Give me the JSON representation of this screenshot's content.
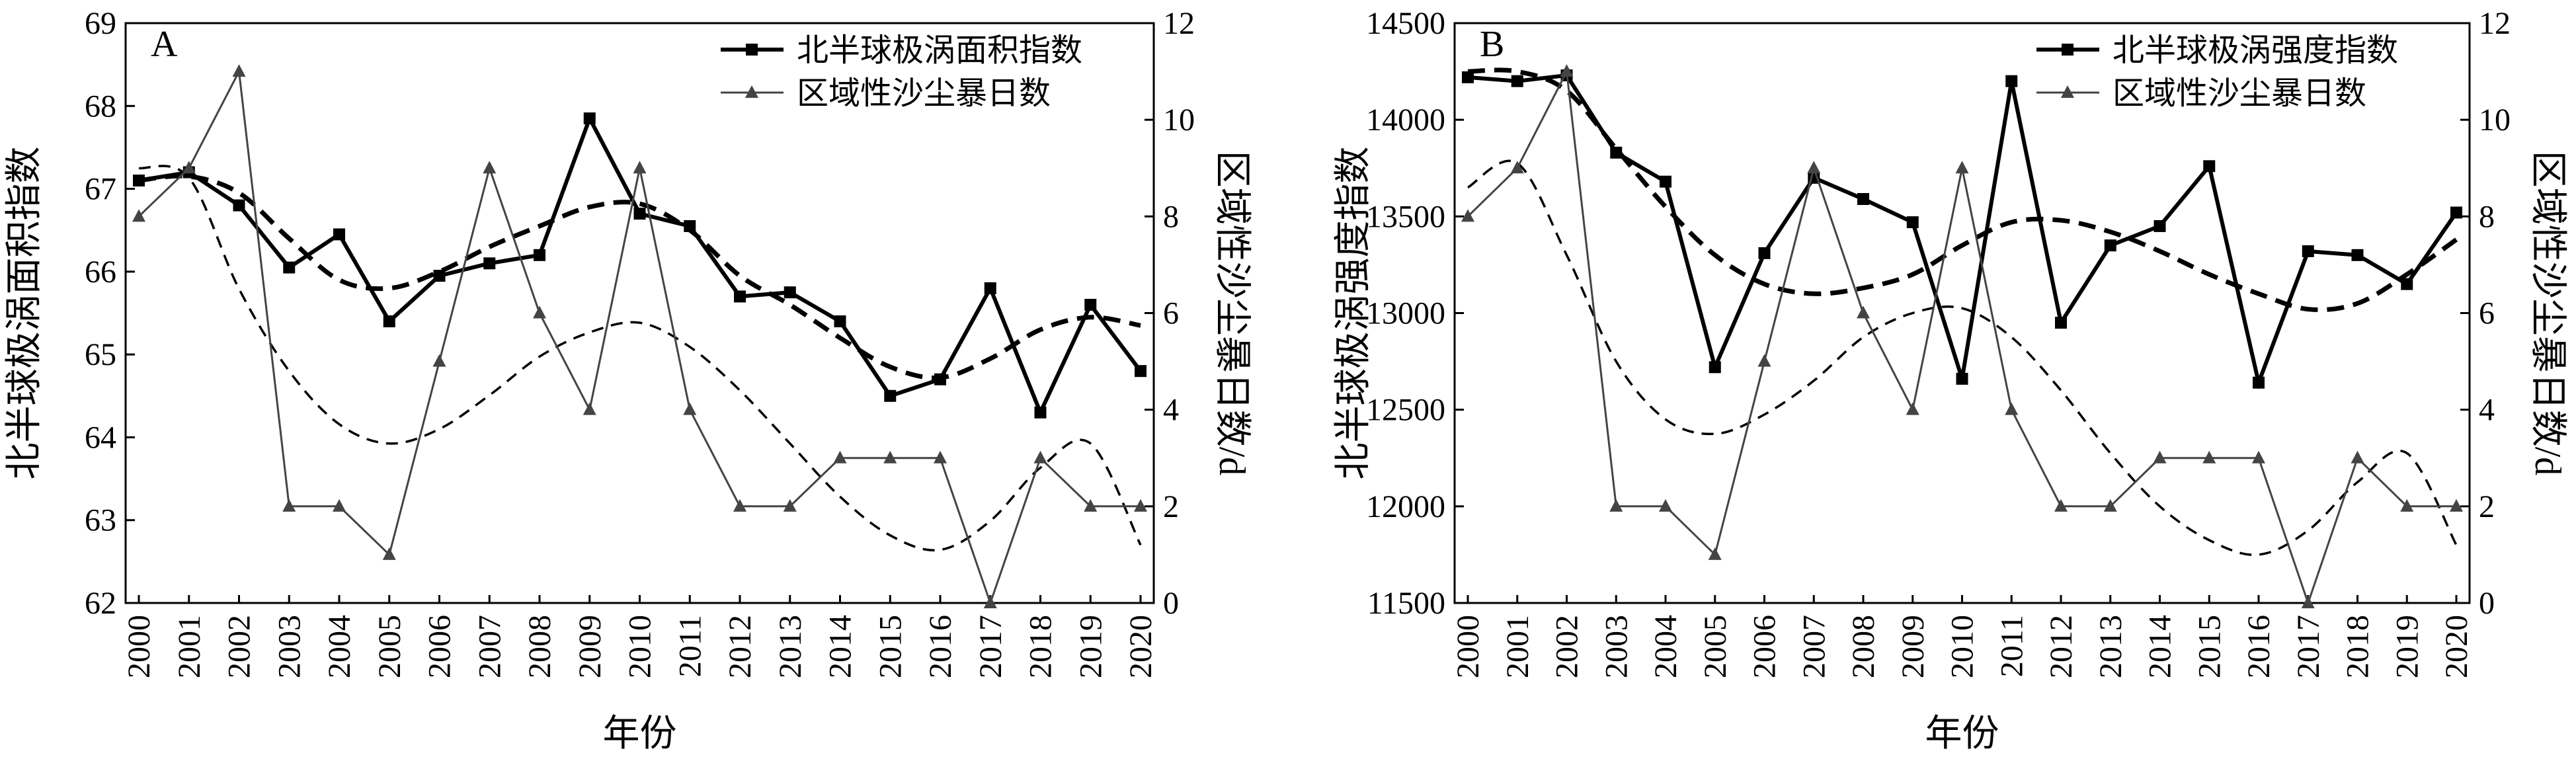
{
  "chart_data": [
    {
      "type": "line",
      "panel_label": "A",
      "xlabel": "年份",
      "ylabel": "北半球极涡面积指数",
      "y2label": "区域性沙尘暴日数/d",
      "x": [
        "2000",
        "2001",
        "2002",
        "2003",
        "2004",
        "2005",
        "2006",
        "2007",
        "2008",
        "2009",
        "2010",
        "2011",
        "2012",
        "2013",
        "2014",
        "2015",
        "2016",
        "2017",
        "2018",
        "2019",
        "2020"
      ],
      "ylim": [
        62,
        69
      ],
      "yticks": [
        62,
        63,
        64,
        65,
        66,
        67,
        68,
        69
      ],
      "y2lim": [
        0,
        12
      ],
      "y2ticks": [
        0,
        2,
        4,
        6,
        8,
        10,
        12
      ],
      "legend_position": "top-right",
      "series": [
        {
          "name": "北半球极涡面积指数",
          "axis": "left",
          "marker": "square",
          "color": "#000000",
          "values": [
            67.1,
            67.2,
            66.8,
            66.05,
            66.45,
            65.4,
            65.95,
            66.1,
            66.2,
            67.85,
            66.7,
            66.55,
            65.7,
            65.75,
            65.4,
            64.5,
            64.7,
            65.8,
            64.3,
            65.6,
            64.8
          ]
        },
        {
          "name": "区域性沙尘暴日数",
          "axis": "right",
          "marker": "triangle",
          "color": "#444444",
          "values": [
            8,
            9,
            11,
            2,
            2,
            1,
            5,
            9,
            6,
            4,
            9,
            4,
            2,
            2,
            3,
            3,
            3,
            0,
            3,
            2,
            2
          ]
        }
      ],
      "trend_lines": [
        {
          "axis": "left",
          "style": "dashed-bold",
          "values": [
            67.1,
            67.15,
            66.95,
            66.4,
            65.9,
            65.8,
            66.0,
            66.3,
            66.55,
            66.78,
            66.82,
            66.5,
            65.95,
            65.6,
            65.2,
            64.85,
            64.72,
            64.95,
            65.3,
            65.45,
            65.35
          ]
        },
        {
          "axis": "right",
          "style": "dashed",
          "values": [
            9.0,
            8.8,
            6.5,
            4.8,
            3.7,
            3.3,
            3.6,
            4.3,
            5.1,
            5.6,
            5.8,
            5.3,
            4.4,
            3.3,
            2.2,
            1.4,
            1.1,
            1.7,
            2.8,
            3.3,
            1.2
          ]
        }
      ]
    },
    {
      "type": "line",
      "panel_label": "B",
      "xlabel": "年份",
      "ylabel": "北半球极涡强度指数",
      "y2label": "区域性沙尘暴日数/d",
      "x": [
        "2000",
        "2001",
        "2002",
        "2003",
        "2004",
        "2005",
        "2006",
        "2007",
        "2008",
        "2009",
        "2010",
        "2011",
        "2012",
        "2013",
        "2014",
        "2015",
        "2016",
        "2017",
        "2018",
        "2019",
        "2020"
      ],
      "ylim": [
        11500,
        14500
      ],
      "yticks": [
        11500,
        12000,
        12500,
        13000,
        13500,
        14000,
        14500
      ],
      "y2lim": [
        0,
        12
      ],
      "y2ticks": [
        0,
        2,
        4,
        6,
        8,
        10,
        12
      ],
      "legend_position": "top-right",
      "series": [
        {
          "name": "北半球极涡强度指数",
          "axis": "left",
          "marker": "square",
          "color": "#000000",
          "values": [
            14220,
            14200,
            14230,
            13830,
            13680,
            12720,
            13310,
            13700,
            13590,
            13470,
            12660,
            14200,
            12950,
            13350,
            13450,
            13760,
            12640,
            13320,
            13300,
            13150,
            13520
          ]
        },
        {
          "name": "区域性沙尘暴日数",
          "axis": "right",
          "marker": "triangle",
          "color": "#444444",
          "values": [
            8,
            9,
            11,
            2,
            2,
            1,
            5,
            9,
            6,
            4,
            9,
            4,
            2,
            2,
            3,
            3,
            3,
            0,
            3,
            2,
            2
          ]
        }
      ],
      "trend_lines": [
        {
          "axis": "left",
          "style": "dashed-bold",
          "values": [
            14250,
            14250,
            14150,
            13850,
            13550,
            13300,
            13150,
            13100,
            13130,
            13200,
            13350,
            13470,
            13480,
            13420,
            13320,
            13200,
            13100,
            13020,
            13050,
            13200,
            13380
          ]
        },
        {
          "axis": "right",
          "style": "dashed",
          "values": [
            8.6,
            9.1,
            7.2,
            5.0,
            3.8,
            3.5,
            3.9,
            4.6,
            5.5,
            6.0,
            6.1,
            5.5,
            4.4,
            3.1,
            2.0,
            1.3,
            1.0,
            1.5,
            2.5,
            3.1,
            1.2
          ]
        }
      ]
    }
  ]
}
